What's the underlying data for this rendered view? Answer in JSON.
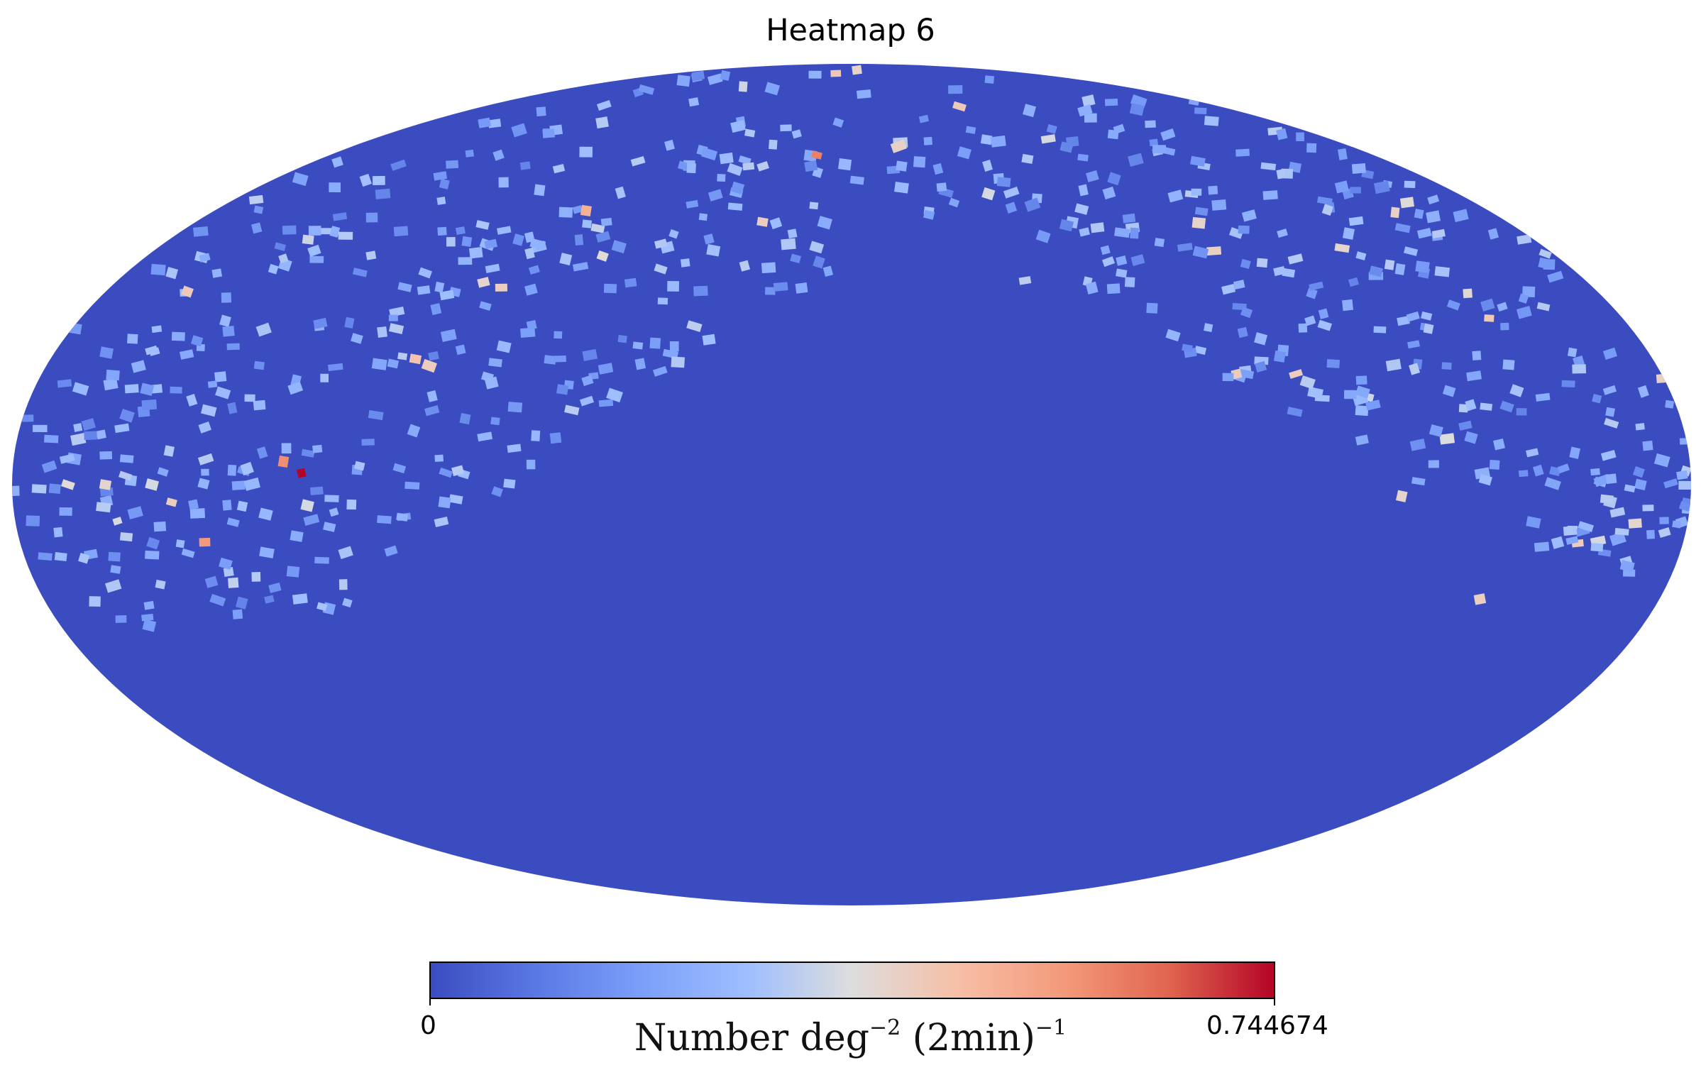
{
  "chart_data": {
    "type": "heatmap",
    "title": "Heatmap 6",
    "projection": "mollweide",
    "colormap": "coolwarm",
    "colorbar": {
      "orientation": "horizontal",
      "placement": "bottom",
      "min": 0,
      "max": 0.744674,
      "min_label": "0",
      "max_label": "0.744674",
      "label_main": "Number deg",
      "label_exp1": "−2",
      "label_mid": " (2min)",
      "label_exp2": "−1"
    },
    "background_value": 0,
    "hotspots": [
      {
        "lon": 118,
        "lat": 2,
        "value": 0.744
      },
      {
        "lon": 122,
        "lat": 4,
        "value": 0.58
      },
      {
        "lon": 140,
        "lat": -10,
        "value": 0.56
      },
      {
        "lon": 75,
        "lat": 50,
        "value": 0.5
      },
      {
        "lon": 98,
        "lat": 22,
        "value": 0.45
      },
      {
        "lon": 85,
        "lat": 35,
        "value": 0.42
      },
      {
        "lon": 90,
        "lat": 36,
        "value": 0.4
      },
      {
        "lon": 168,
        "lat": 0,
        "value": 0.38
      },
      {
        "lon": 160,
        "lat": 0,
        "value": 0.4
      },
      {
        "lon": 150,
        "lat": 0,
        "value": 0.36
      },
      {
        "lon": 12,
        "lat": 62,
        "value": 0.6
      },
      {
        "lon": -140,
        "lat": -20,
        "value": 0.42
      },
      {
        "lon": -118,
        "lat": -2,
        "value": 0.4
      },
      {
        "lon": -155,
        "lat": -8,
        "value": 0.3
      }
    ]
  },
  "colors": {
    "background_blue": "#3b4cc0",
    "low": "#3b4cc0",
    "mid": "#dddddd",
    "high": "#b40426"
  }
}
